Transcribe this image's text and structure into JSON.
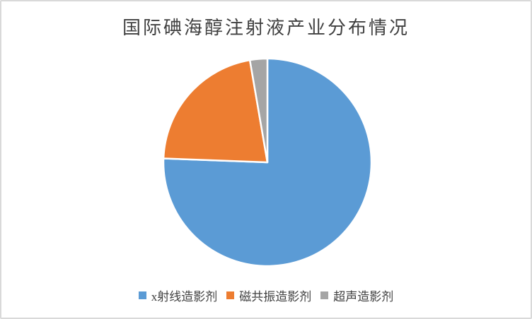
{
  "chart_data": {
    "type": "pie",
    "title": "国际碘海醇注射液产业分布情况",
    "categories": [
      "x射线造影剂",
      "磁共振造影剂",
      "超声造影剂"
    ],
    "values": [
      75.6,
      21.7,
      2.7
    ],
    "unit": "percent",
    "colors": [
      "#5B9BD5",
      "#ED7D31",
      "#A5A5A5"
    ],
    "start_angle_deg": 0,
    "direction": "clockwise",
    "legend_position": "bottom",
    "slice_border_color": "#FFFFFF",
    "title_color": "#404040",
    "legend_text_color": "#404040"
  }
}
